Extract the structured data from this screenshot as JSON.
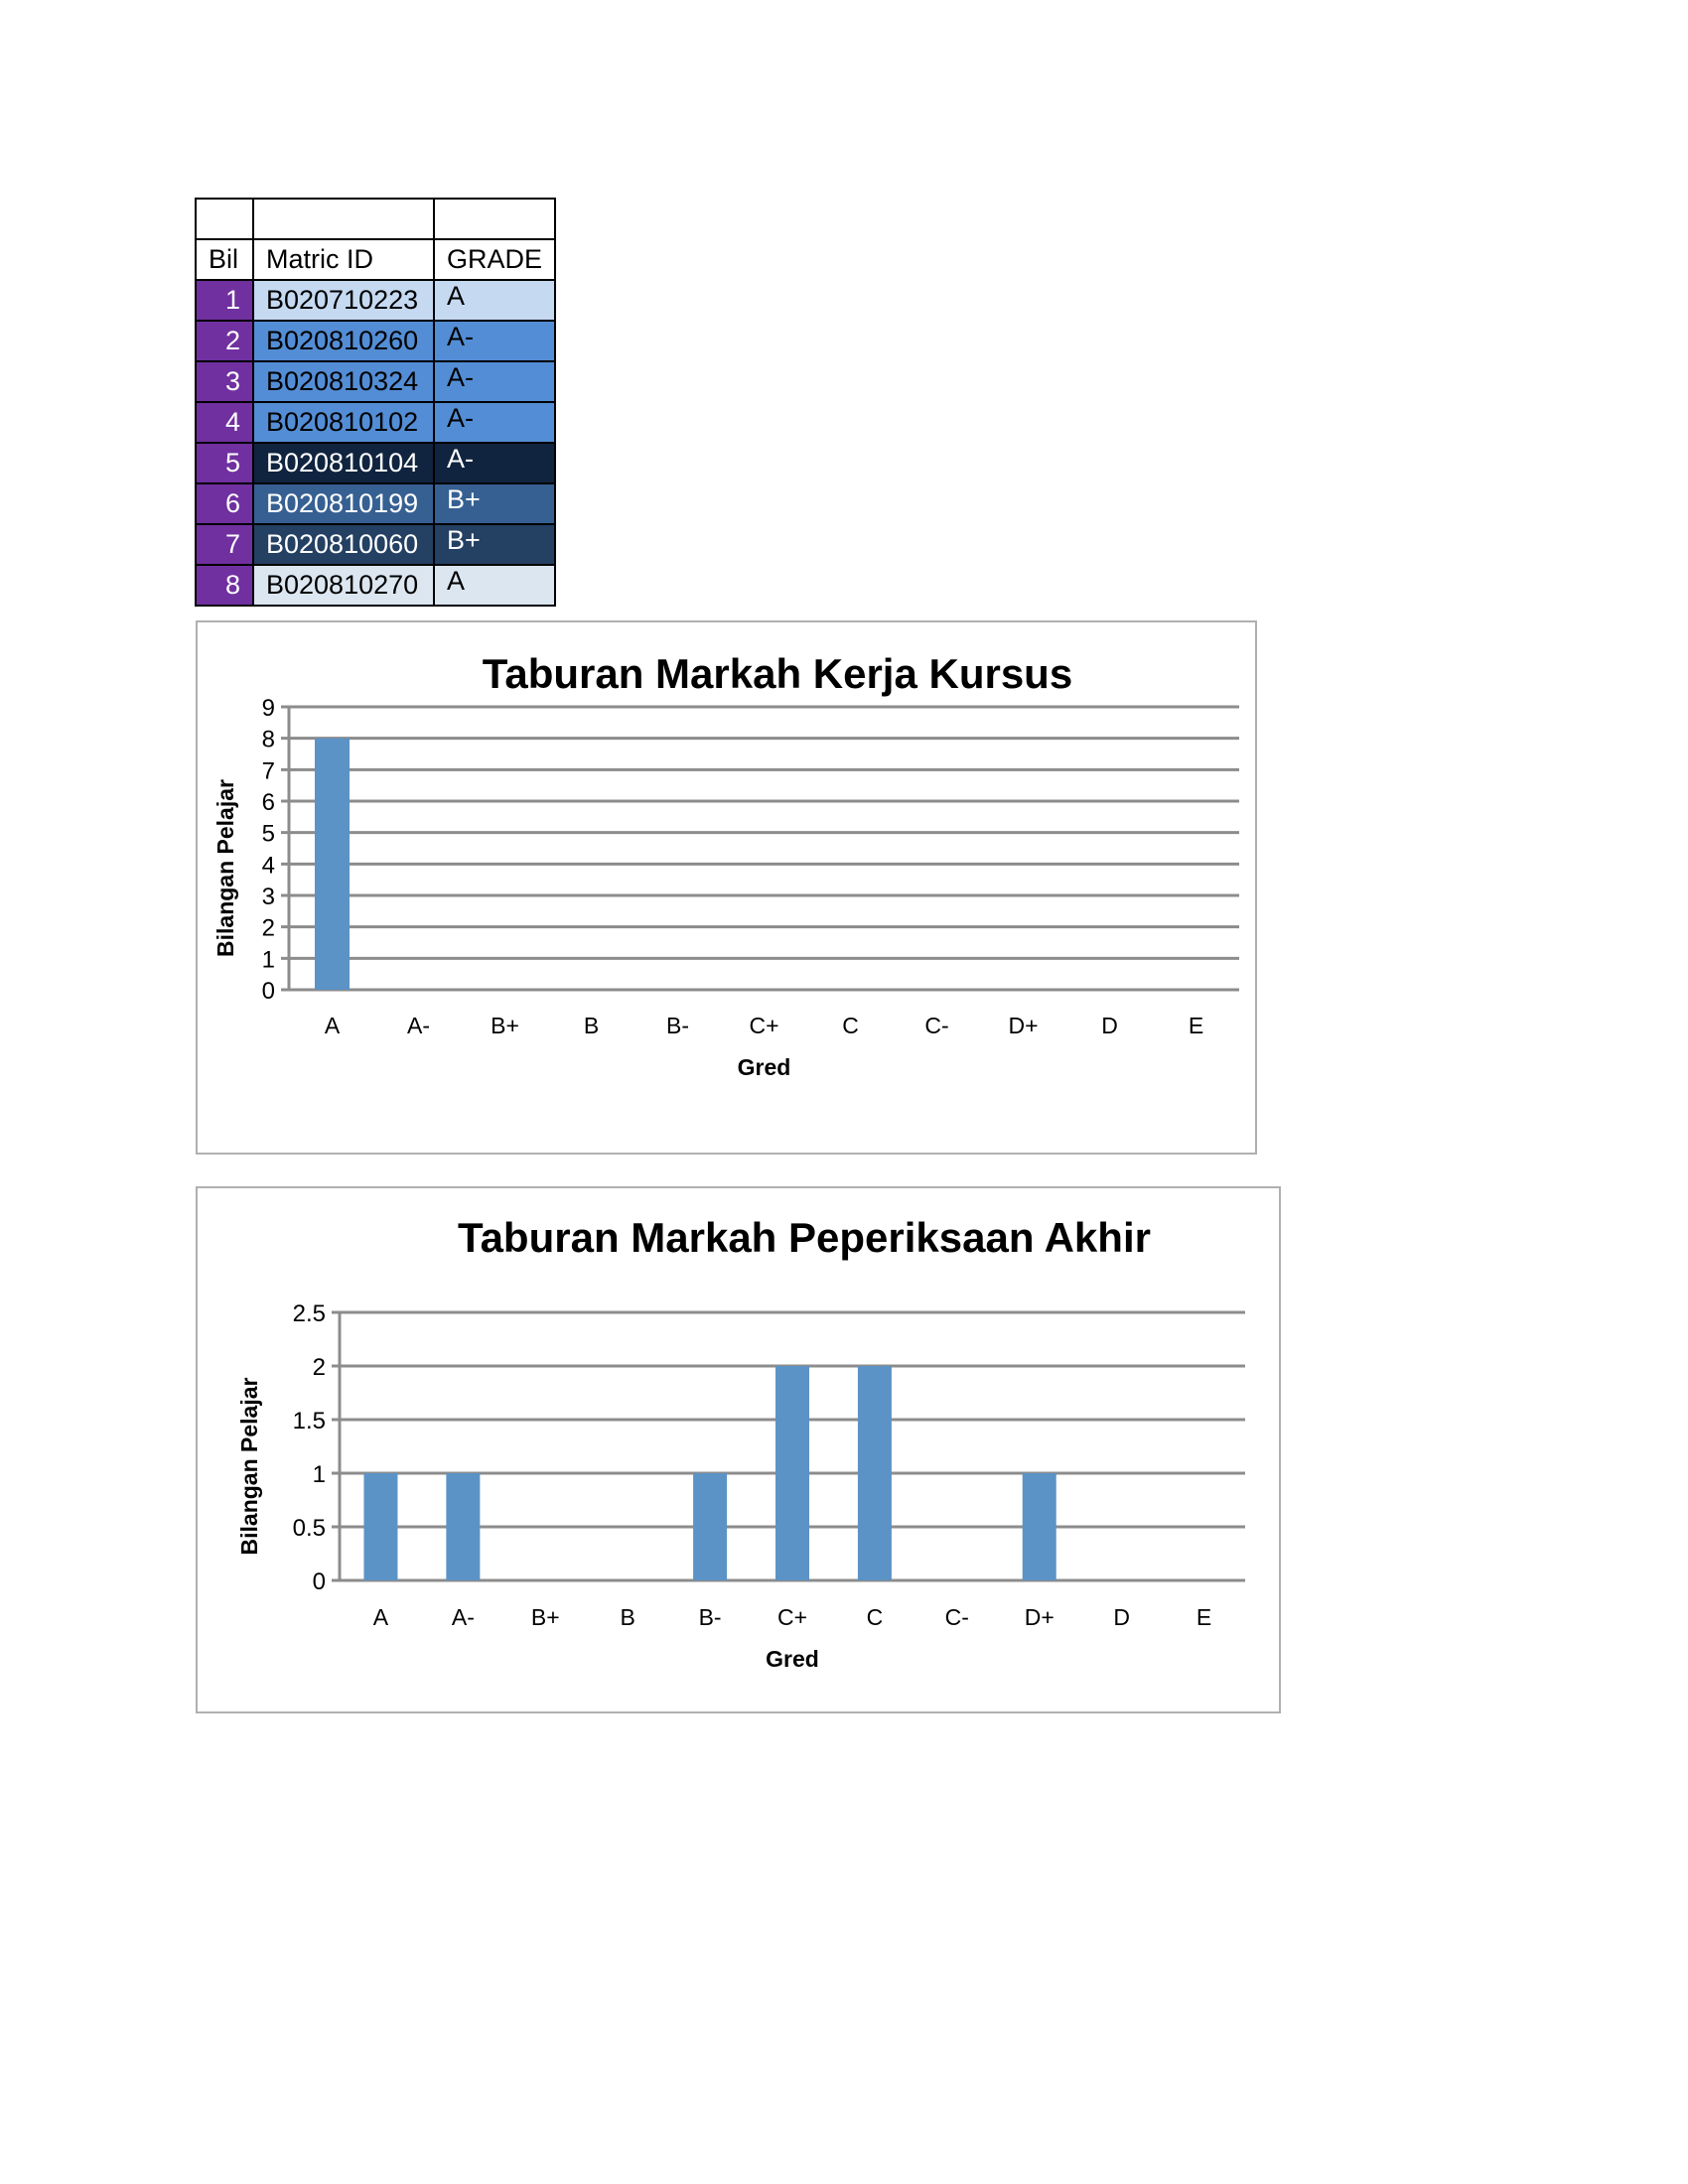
{
  "table": {
    "headers": [
      "Bil",
      "Matric ID",
      "GRADE"
    ],
    "rows": [
      {
        "bil": "1",
        "id": "B020710223",
        "grade": "A",
        "bg": "#c5d9f1",
        "fg": "#000000"
      },
      {
        "bil": "2",
        "id": "B020810260",
        "grade": "A-",
        "bg": "#538dd5",
        "fg": "#000000"
      },
      {
        "bil": "3",
        "id": "B020810324",
        "grade": "A-",
        "bg": "#538dd5",
        "fg": "#000000"
      },
      {
        "bil": "4",
        "id": "B020810102",
        "grade": "A-",
        "bg": "#538dd5",
        "fg": "#000000"
      },
      {
        "bil": "5",
        "id": "B020810104",
        "grade": "A-",
        "bg": "#10243f",
        "fg": "#ffffff"
      },
      {
        "bil": "6",
        "id": "B020810199",
        "grade": "B+",
        "bg": "#366092",
        "fg": "#ffffff"
      },
      {
        "bil": "7",
        "id": "B020810060",
        "grade": "B+",
        "bg": "#244062",
        "fg": "#ffffff"
      },
      {
        "bil": "8",
        "id": "B020810270",
        "grade": "A",
        "bg": "#dce6f1",
        "fg": "#000000"
      }
    ]
  },
  "chart_data": [
    {
      "type": "bar",
      "title": "Taburan Markah Kerja Kursus",
      "xlabel": "Gred",
      "ylabel": "Bilangan Pelajar",
      "categories": [
        "A",
        "A-",
        "B+",
        "B",
        "B-",
        "C+",
        "C",
        "C-",
        "D+",
        "D",
        "E"
      ],
      "values": [
        8,
        0,
        0,
        0,
        0,
        0,
        0,
        0,
        0,
        0,
        0
      ],
      "ylim": [
        0,
        9
      ],
      "yticks": [
        "0",
        "1",
        "2",
        "3",
        "4",
        "5",
        "6",
        "7",
        "8",
        "9"
      ],
      "grid": true,
      "bar_color": "#5b93c6"
    },
    {
      "type": "bar",
      "title": "Taburan Markah Peperiksaan Akhir",
      "xlabel": "Gred",
      "ylabel": "Bilangan Pelajar",
      "categories": [
        "A",
        "A-",
        "B+",
        "B",
        "B-",
        "C+",
        "C",
        "C-",
        "D+",
        "D",
        "E"
      ],
      "values": [
        1,
        1,
        0,
        0,
        1,
        2,
        2,
        0,
        1,
        0,
        0
      ],
      "ylim": [
        0,
        2.5
      ],
      "yticks": [
        "0",
        "0.5",
        "1",
        "1.5",
        "2",
        "2.5"
      ],
      "grid": true,
      "bar_color": "#5b93c6"
    }
  ]
}
